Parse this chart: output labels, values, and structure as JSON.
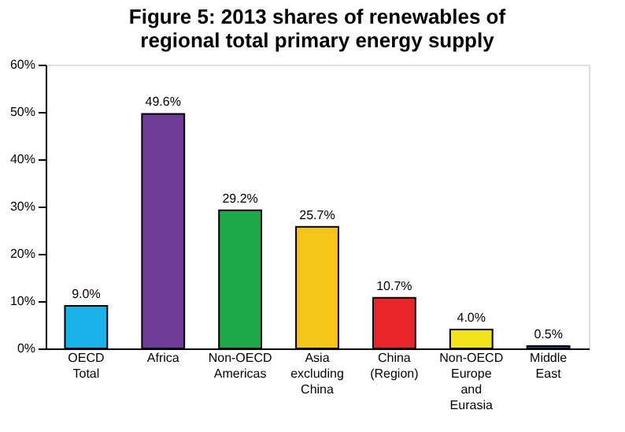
{
  "chart_data": {
    "type": "bar",
    "title": "Figure 5: 2013 shares of renewables of regional total primary energy supply",
    "categories": [
      "OECD Total",
      "Africa",
      "Non-OECD Americas",
      "Asia excluding China",
      "China (Region)",
      "Non-OECD Europe and Eurasia",
      "Middle East"
    ],
    "values": [
      9.0,
      49.6,
      29.2,
      25.7,
      10.7,
      4.0,
      0.5
    ],
    "colors": [
      "#1ab0e8",
      "#6f3d98",
      "#1fa84a",
      "#f5c518",
      "#e8262a",
      "#f2e41c",
      "#2f5fa8"
    ],
    "value_labels": [
      "9.0%",
      "49.6%",
      "29.2%",
      "25.7%",
      "10.7%",
      "4.0%",
      "0.5%"
    ],
    "ylim": [
      0,
      60
    ],
    "yticks": [
      {
        "value": 0,
        "label": "0%"
      },
      {
        "value": 10,
        "label": "10%"
      },
      {
        "value": 20,
        "label": "20%"
      },
      {
        "value": 30,
        "label": "30%"
      },
      {
        "value": 40,
        "label": "40%"
      },
      {
        "value": 50,
        "label": "50%"
      },
      {
        "value": 60,
        "label": "60%"
      }
    ],
    "grid": false
  }
}
